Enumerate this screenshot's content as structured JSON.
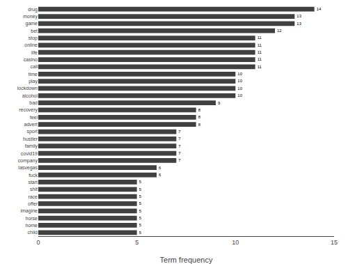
{
  "chart_data": {
    "type": "bar",
    "orientation": "horizontal",
    "categories": [
      "drug",
      "money",
      "game",
      "bet",
      "stop",
      "online",
      "life",
      "casino",
      "call",
      "time",
      "play",
      "lockdown",
      "alcohol",
      "bad",
      "recovery",
      "feel",
      "advert",
      "sport",
      "hustler",
      "family",
      "covid19",
      "company",
      "lasvegas",
      "fuck",
      "start",
      "shit",
      "race",
      "offer",
      "imagine",
      "horse",
      "home",
      "child"
    ],
    "values": [
      14,
      13,
      13,
      12,
      11,
      11,
      11,
      11,
      11,
      10,
      10,
      10,
      10,
      9,
      8,
      8,
      8,
      7,
      7,
      7,
      7,
      7,
      6,
      6,
      5,
      5,
      5,
      5,
      5,
      5,
      5,
      5
    ],
    "color": "#404040",
    "xlabel": "Term frequency",
    "xlim": [
      0,
      15
    ],
    "xticks": [
      0,
      5,
      10,
      15
    ],
    "data_labels": true,
    "grid": false
  }
}
